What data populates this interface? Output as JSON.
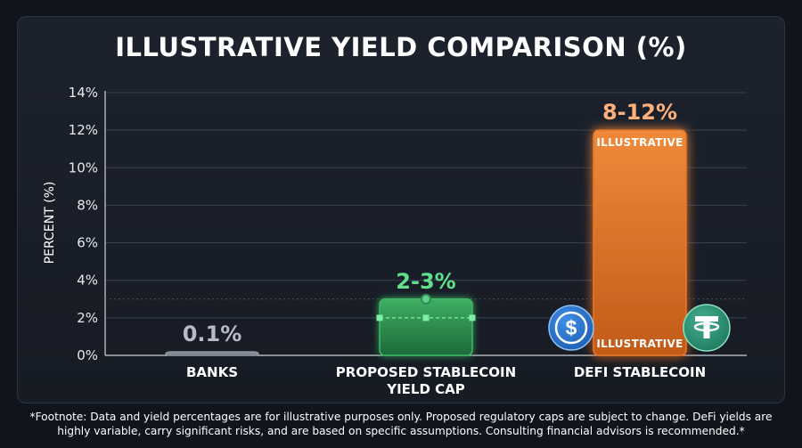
{
  "chart_data": {
    "type": "bar",
    "title": "ILLUSTRATIVE YIELD COMPARISON (%)",
    "ylabel": "PERCENT (%)",
    "xlabel": "",
    "ylim": [
      0,
      14
    ],
    "yticks": [
      0,
      2,
      4,
      6,
      8,
      10,
      12,
      14
    ],
    "ytick_labels": [
      "0%",
      "2%",
      "4%",
      "6%",
      "8%",
      "10%",
      "12%",
      "14%"
    ],
    "grid": true,
    "categories": [
      {
        "label_lines": [
          "BANKS"
        ]
      },
      {
        "label_lines": [
          "PROPOSED STABLECOIN",
          "YIELD CAP"
        ]
      },
      {
        "label_lines": [
          "DEFI STABLECOIN"
        ]
      }
    ],
    "values": [
      0.1,
      3,
      12
    ],
    "range_low": [
      null,
      2,
      8
    ],
    "value_labels": [
      "0.1%",
      "2-3%",
      "8-12%"
    ],
    "bar_notes": [
      [],
      [],
      [
        "ILLUSTRATIVE",
        "ILLUSTRATIVE"
      ]
    ],
    "colors": [
      "#8c929c",
      "#3cb964",
      "#e8772a"
    ],
    "label_colors": [
      "#b7bcc4",
      "#5fe08a",
      "#ffb07a"
    ],
    "icons": [
      "usdc-coin-icon",
      "tether-coin-icon"
    ]
  },
  "footnote": "*Footnote: Data and yield percentages are for illustrative purposes only. Proposed regulatory caps are subject to change. DeFi yields are highly variable, carry significant risks, and are based on specific assumptions. Consulting financial advisors is recommended.*"
}
